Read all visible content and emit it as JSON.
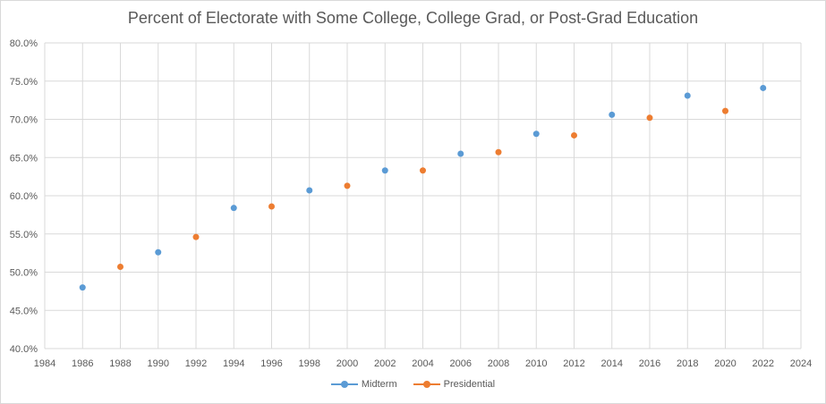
{
  "chart_data": {
    "type": "scatter",
    "title": "Percent of Electorate with Some College, College Grad, or Post-Grad Education",
    "xlabel": "",
    "ylabel": "",
    "xlim": [
      1984,
      2024
    ],
    "ylim": [
      0.4,
      0.8
    ],
    "x_ticks": [
      "1984",
      "1986",
      "1988",
      "1990",
      "1992",
      "1994",
      "1996",
      "1998",
      "2000",
      "2002",
      "2004",
      "2006",
      "2008",
      "2010",
      "2012",
      "2014",
      "2016",
      "2018",
      "2020",
      "2022",
      "2024"
    ],
    "y_ticks": [
      "40.0%",
      "45.0%",
      "50.0%",
      "55.0%",
      "60.0%",
      "65.0%",
      "70.0%",
      "75.0%",
      "80.0%"
    ],
    "grid": true,
    "legend_position": "bottom",
    "series": [
      {
        "name": "Midterm",
        "color": "#5b9bd5",
        "points": [
          {
            "x": 1986,
            "y": 0.48
          },
          {
            "x": 1990,
            "y": 0.526
          },
          {
            "x": 1994,
            "y": 0.584
          },
          {
            "x": 1998,
            "y": 0.607
          },
          {
            "x": 2002,
            "y": 0.633
          },
          {
            "x": 2006,
            "y": 0.655
          },
          {
            "x": 2010,
            "y": 0.681
          },
          {
            "x": 2014,
            "y": 0.706
          },
          {
            "x": 2018,
            "y": 0.731
          },
          {
            "x": 2022,
            "y": 0.741
          }
        ]
      },
      {
        "name": "Presidential",
        "color": "#ed7d31",
        "points": [
          {
            "x": 1988,
            "y": 0.507
          },
          {
            "x": 1992,
            "y": 0.546
          },
          {
            "x": 1996,
            "y": 0.586
          },
          {
            "x": 2000,
            "y": 0.613
          },
          {
            "x": 2004,
            "y": 0.633
          },
          {
            "x": 2008,
            "y": 0.657
          },
          {
            "x": 2012,
            "y": 0.679
          },
          {
            "x": 2016,
            "y": 0.702
          },
          {
            "x": 2020,
            "y": 0.711
          }
        ]
      }
    ]
  }
}
